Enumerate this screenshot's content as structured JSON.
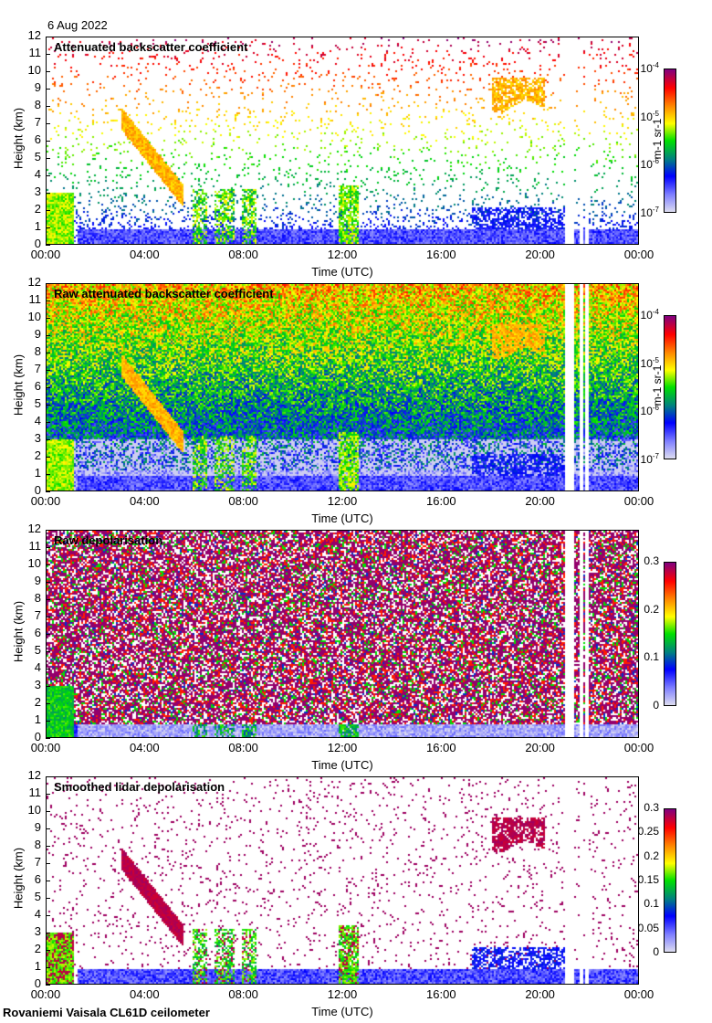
{
  "date": "6 Aug 2022",
  "footer": "Rovaniemi Vaisala CL61D ceilometer",
  "chart_data": [
    {
      "type": "heatmap",
      "title": "Attenuated backscatter coefficient",
      "xlabel": "Time (UTC)",
      "ylabel": "Height (km)",
      "xticks": [
        "00:00",
        "04:00",
        "08:00",
        "12:00",
        "16:00",
        "20:00",
        "00:00"
      ],
      "yticks": [
        "0",
        "1",
        "2",
        "3",
        "4",
        "5",
        "6",
        "7",
        "8",
        "9",
        "10",
        "11",
        "12"
      ],
      "xlim": [
        0,
        24
      ],
      "ylim": [
        0,
        12
      ],
      "colorbar": {
        "label": "m-1 sr-1",
        "scale": "log",
        "ticks": [
          "10-7",
          "10-6",
          "10-5",
          "10-4"
        ],
        "range": [
          1e-07,
          0.0001
        ]
      }
    },
    {
      "type": "heatmap",
      "title": "Raw attenuated backscatter coefficient",
      "xlabel": "Time (UTC)",
      "ylabel": "Height (km)",
      "xticks": [
        "00:00",
        "04:00",
        "08:00",
        "12:00",
        "16:00",
        "20:00",
        "00:00"
      ],
      "yticks": [
        "0",
        "1",
        "2",
        "3",
        "4",
        "5",
        "6",
        "7",
        "8",
        "9",
        "10",
        "11",
        "12"
      ],
      "xlim": [
        0,
        24
      ],
      "ylim": [
        0,
        12
      ],
      "colorbar": {
        "label": "m-1 sr-1",
        "scale": "log",
        "ticks": [
          "10-7",
          "10-6",
          "10-5",
          "10-4"
        ],
        "range": [
          1e-07,
          0.0001
        ]
      }
    },
    {
      "type": "heatmap",
      "title": "Raw depolarisation",
      "xlabel": "Time (UTC)",
      "ylabel": "Height (km)",
      "xticks": [
        "00:00",
        "04:00",
        "08:00",
        "12:00",
        "16:00",
        "20:00",
        "00:00"
      ],
      "yticks": [
        "0",
        "1",
        "2",
        "3",
        "4",
        "5",
        "6",
        "7",
        "8",
        "9",
        "10",
        "11",
        "12"
      ],
      "xlim": [
        0,
        24
      ],
      "ylim": [
        0,
        12
      ],
      "colorbar": {
        "label": "",
        "scale": "linear",
        "ticks": [
          "0",
          "0.1",
          "0.2",
          "0.3"
        ],
        "range": [
          0,
          0.3
        ]
      }
    },
    {
      "type": "heatmap",
      "title": "Smoothed lidar depolarisation",
      "xlabel": "Time (UTC)",
      "ylabel": "Height (km)",
      "xticks": [
        "00:00",
        "04:00",
        "08:00",
        "12:00",
        "16:00",
        "20:00",
        "00:00"
      ],
      "yticks": [
        "0",
        "1",
        "2",
        "3",
        "4",
        "5",
        "6",
        "7",
        "8",
        "9",
        "10",
        "11",
        "12"
      ],
      "xlim": [
        0,
        24
      ],
      "ylim": [
        0,
        12
      ],
      "colorbar": {
        "label": "",
        "scale": "linear",
        "ticks": [
          "0",
          "0.05",
          "0.1",
          "0.15",
          "0.2",
          "0.25",
          "0.3"
        ],
        "range": [
          0,
          0.3
        ]
      }
    }
  ]
}
